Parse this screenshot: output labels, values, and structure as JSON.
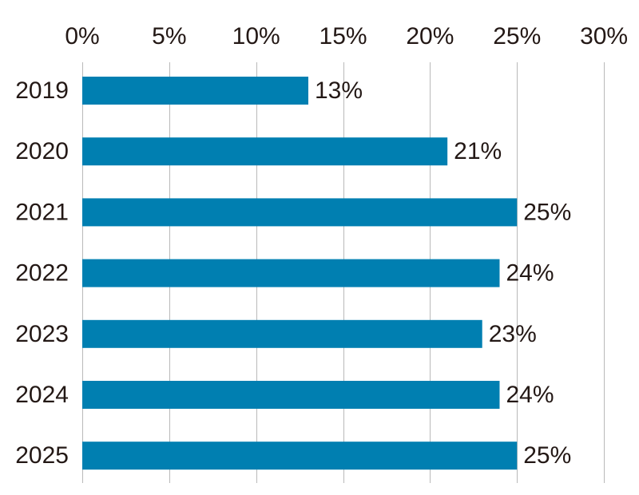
{
  "chart_data": {
    "type": "bar",
    "orientation": "horizontal",
    "categories": [
      "2019",
      "2020",
      "2021",
      "2022",
      "2023",
      "2024",
      "2025"
    ],
    "values": [
      13,
      21,
      25,
      24,
      23,
      24,
      25
    ],
    "data_labels": [
      "13%",
      "21%",
      "25%",
      "24%",
      "23%",
      "24%",
      "25%"
    ],
    "x_ticks": [
      0,
      5,
      10,
      15,
      20,
      25,
      30
    ],
    "x_tick_labels": [
      "0%",
      "5%",
      "10%",
      "15%",
      "20%",
      "25%",
      "30%"
    ],
    "xlim": [
      0,
      30
    ],
    "x_axis_position": "top",
    "grid": true,
    "legend": "none",
    "title": "",
    "xlabel": "",
    "ylabel": "",
    "colors": {
      "bar": "#007fb1",
      "grid": "#b9b9b9",
      "text": "#231815"
    }
  }
}
